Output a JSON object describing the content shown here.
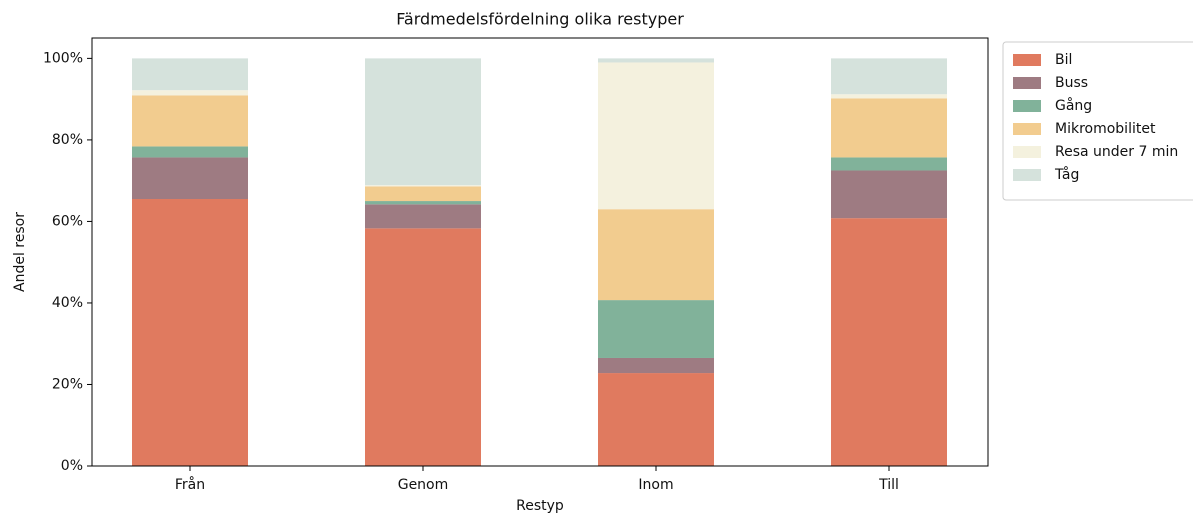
{
  "chart_data": {
    "type": "stacked_bar",
    "title": "Färdmedelsfördelning olika restyper",
    "x_label": "Restyp",
    "y_label": "Andel resor",
    "categories": [
      "Från",
      "Genom",
      "Inom",
      "Till"
    ],
    "series": [
      {
        "name": "Bil",
        "color": "#e07a5f",
        "values": [
          65.5,
          58.3,
          22.8,
          60.8
        ]
      },
      {
        "name": "Buss",
        "color": "#9e7b82",
        "values": [
          10.2,
          5.9,
          3.7,
          11.7
        ]
      },
      {
        "name": "Gång",
        "color": "#81b29a",
        "values": [
          2.7,
          0.8,
          14.2,
          3.2
        ]
      },
      {
        "name": "Mikromobilitet",
        "color": "#f2cc8f",
        "values": [
          12.5,
          3.6,
          22.3,
          14.5
        ]
      },
      {
        "name": "Resa under 7 min",
        "color": "#f4f1de",
        "values": [
          1.3,
          0.3,
          36.0,
          1.0
        ]
      },
      {
        "name": "Tåg",
        "color": "#d5e2dc",
        "values": [
          7.8,
          31.1,
          1.0,
          8.8
        ]
      }
    ],
    "ylim": [
      0,
      105
    ],
    "yticks": [
      {
        "value": 0,
        "label": "0%"
      },
      {
        "value": 20,
        "label": "20%"
      },
      {
        "value": 40,
        "label": "40%"
      },
      {
        "value": 60,
        "label": "60%"
      },
      {
        "value": 80,
        "label": "80%"
      },
      {
        "value": 100,
        "label": "100%"
      }
    ],
    "legend": "outside-right"
  }
}
